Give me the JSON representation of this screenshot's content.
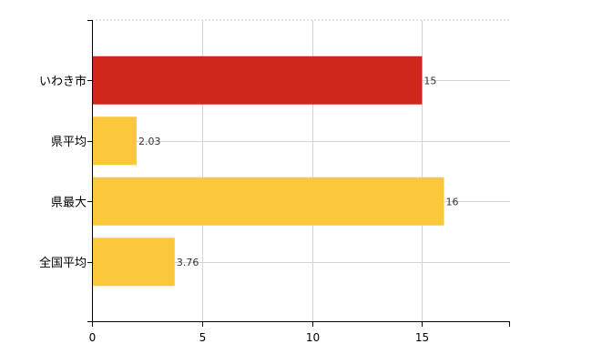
{
  "chart_data": {
    "type": "bar",
    "orientation": "horizontal",
    "categories": [
      "いわき市",
      "県平均",
      "県最大",
      "全国平均"
    ],
    "values": [
      15,
      2.03,
      16,
      3.76
    ],
    "value_labels": [
      "15",
      "2.03",
      "16",
      "3.76"
    ],
    "bar_colors": [
      "#d0261c",
      "#fbc83c",
      "#fbc83c",
      "#fbc83c"
    ],
    "xlim": [
      0,
      19
    ],
    "xticks": [
      0,
      5,
      10,
      15
    ],
    "xtick_labels": [
      "0",
      "5",
      "10",
      "15"
    ],
    "grid": true,
    "title": "",
    "xlabel": "",
    "ylabel": ""
  }
}
